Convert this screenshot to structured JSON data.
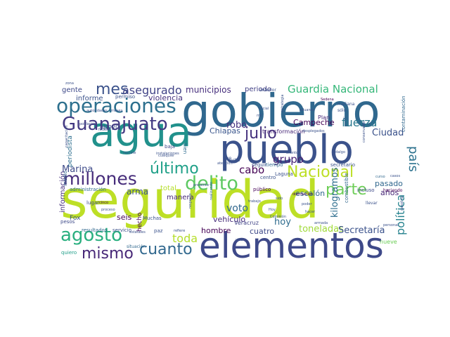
{
  "words": [
    {
      "text": "seguridad",
      "color": "#bddf26"
    },
    {
      "text": "gobierno",
      "color": "#30688e"
    },
    {
      "text": "pueblo",
      "color": "#3b528b"
    },
    {
      "text": "agua",
      "color": "#21918c"
    },
    {
      "text": "elementos",
      "color": "#3e4989"
    },
    {
      "text": "operaciones",
      "color": "#2d708e"
    },
    {
      "text": "Guanajuato",
      "color": "#443a83"
    },
    {
      "text": "millones",
      "color": "#472d7b"
    },
    {
      "text": "agosto",
      "color": "#29af7f"
    },
    {
      "text": "Nacional",
      "color": "#bddf26"
    },
    {
      "text": "delito",
      "color": "#5ec962"
    },
    {
      "text": "parte",
      "color": "#6ece58"
    },
    {
      "text": "último",
      "color": "#1fa088"
    },
    {
      "text": "mismo",
      "color": "#482878"
    },
    {
      "text": "cuanto",
      "color": "#31688e"
    },
    {
      "text": "julio",
      "color": "#46337e"
    },
    {
      "text": "país",
      "color": "#2c728e"
    },
    {
      "text": "Guardia Nacional",
      "color": "#35b779"
    },
    {
      "text": "mes",
      "color": "#3b528b"
    },
    {
      "text": "asegurado",
      "color": "#414487"
    },
    {
      "text": "fuerza",
      "color": "#2a788e"
    },
    {
      "text": "Marina",
      "color": "#3e4a89"
    },
    {
      "text": "cabo",
      "color": "#440154"
    },
    {
      "text": "grupo",
      "color": "#482475"
    },
    {
      "text": "política",
      "color": "#26828e"
    },
    {
      "text": "robo",
      "color": "#46307e"
    },
    {
      "text": "toda",
      "color": "#b5de2b"
    },
    {
      "text": "municipios",
      "color": "#472f7d"
    },
    {
      "text": "periodo",
      "color": "#424186"
    },
    {
      "text": "voto",
      "color": "#31688e"
    },
    {
      "text": "hoy",
      "color": "#2f6c8e"
    },
    {
      "text": "toneladas",
      "color": "#a0da39"
    },
    {
      "text": "Secretaría",
      "color": "#3b528b"
    },
    {
      "text": "kilogramos",
      "color": "#2e6e8e"
    },
    {
      "text": "pasado",
      "color": "#31688e"
    },
    {
      "text": "arma",
      "color": "#3b528b"
    },
    {
      "text": "hombre",
      "color": "#440154"
    },
    {
      "text": "cuatro",
      "color": "#3e4989"
    },
    {
      "text": "escalón",
      "color": "#31688e"
    },
    {
      "text": "Ciudad",
      "color": "#3b528b"
    },
    {
      "text": "años",
      "color": "#482878"
    },
    {
      "text": "vehículo",
      "color": "#472c7a"
    },
    {
      "text": "seis",
      "color": "#440154"
    },
    {
      "text": "total",
      "color": "#b5de2b"
    },
    {
      "text": "Chiapas",
      "color": "#39558c"
    },
    {
      "text": "Campeche",
      "color": "#440154"
    },
    {
      "text": "violencia",
      "color": "#46327e"
    },
    {
      "text": "gente",
      "color": "#3e4989"
    },
    {
      "text": "informe",
      "color": "#3b528b"
    },
    {
      "text": "información",
      "color": "#46307e"
    },
    {
      "text": "manera",
      "color": "#482878"
    },
    {
      "text": "Fox",
      "color": "#3b528b"
    },
    {
      "text": "Veracruz",
      "color": "#414487"
    },
    {
      "text": "Plan",
      "color": "#482878"
    },
    {
      "text": "apoyo",
      "color": "#3e4989"
    },
    {
      "text": "periodista",
      "color": "#2e6e8e"
    },
    {
      "text": "permiso",
      "color": "#3b528b"
    },
    {
      "text": "hecho",
      "color": "#440154"
    },
    {
      "text": "Muchas",
      "color": "#3b528b"
    },
    {
      "text": "resultados",
      "color": "#31688e"
    },
    {
      "text": "servicio",
      "color": "#3b528b"
    },
    {
      "text": "quiero",
      "color": "#1f9e89"
    },
    {
      "text": "paz",
      "color": "#3b528b"
    },
    {
      "text": "nueve",
      "color": "#6ece58"
    },
    {
      "text": "transformación",
      "color": "#482878"
    },
    {
      "text": "seguir",
      "color": "#3b528b"
    },
    {
      "text": "tiempo",
      "color": "#31688e"
    },
    {
      "text": "secretario",
      "color": "#3b528b"
    },
    {
      "text": "combustible",
      "color": "#31688e"
    },
    {
      "text": "incluso",
      "color": "#3e4989"
    },
    {
      "text": "haciendo",
      "color": "#440154"
    },
    {
      "text": "llevar",
      "color": "#3b528b"
    },
    {
      "text": "público",
      "color": "#440154"
    },
    {
      "text": "centro",
      "color": "#3b528b"
    },
    {
      "text": "Laguna",
      "color": "#3b528b"
    },
    {
      "text": "medio",
      "color": "#31688e"
    },
    {
      "text": "pesos",
      "color": "#3e4989"
    },
    {
      "text": "administración",
      "color": "#2f6c8e"
    },
    {
      "text": "lugar",
      "color": "#3e4989"
    },
    {
      "text": "cinco",
      "color": "#440154"
    },
    {
      "text": "bien",
      "color": "#2f6c8e"
    },
    {
      "text": "baja",
      "color": "#3e4989"
    },
    {
      "text": "ocho",
      "color": "#3b528b"
    },
    {
      "text": "anterior",
      "color": "#3b528b"
    },
    {
      "text": "mañana",
      "color": "#3b528b"
    },
    {
      "text": "sólo",
      "color": "#3b528b"
    },
    {
      "text": "ir",
      "color": "#3b528b"
    },
    {
      "text": "contaminación",
      "color": "#31688e"
    },
    {
      "text": "Sedena",
      "color": "#440154"
    },
    {
      "text": "aduanas",
      "color": "#3b528b"
    },
    {
      "text": "desplegados",
      "color": "#3b528b"
    },
    {
      "text": "Hidalgo",
      "color": "#3b528b"
    },
    {
      "text": "curso",
      "color": "#31688e"
    },
    {
      "text": "población",
      "color": "#3e4989"
    },
    {
      "text": "rescate",
      "color": "#3b528b"
    },
    {
      "text": "instalaciones",
      "color": "#3b528b"
    },
    {
      "text": "atención",
      "color": "#3b528b"
    },
    {
      "text": "vida",
      "color": "#3b528b"
    },
    {
      "text": "refiere",
      "color": "#3b528b"
    },
    {
      "text": "estatales",
      "color": "#3b528b"
    },
    {
      "text": "situación",
      "color": "#31688e"
    },
    {
      "text": "distribución",
      "color": "#440154"
    },
    {
      "text": "poder",
      "color": "#3b528b"
    },
    {
      "text": "Comisión",
      "color": "#3b528b"
    },
    {
      "text": "realizando",
      "color": "#31688e"
    },
    {
      "text": "respecto",
      "color": "#3b528b"
    },
    {
      "text": "trabajo",
      "color": "#3b528b"
    },
    {
      "text": "sido",
      "color": "#3b528b"
    },
    {
      "text": "social",
      "color": "#3b528b"
    },
    {
      "text": "autoridades",
      "color": "#3b528b"
    },
    {
      "text": "meses",
      "color": "#3b528b"
    },
    {
      "text": "estrategia",
      "color": "#3b528b"
    },
    {
      "text": "federal",
      "color": "#3b528b"
    },
    {
      "text": "conservador",
      "color": "#3b528b"
    },
    {
      "text": "personal",
      "color": "#3b528b"
    },
    {
      "text": "gasolina",
      "color": "#3b528b"
    },
    {
      "text": "zona",
      "color": "#3b528b"
    },
    {
      "text": "capacitación",
      "color": "#3b528b"
    },
    {
      "text": "cualquier",
      "color": "#3b528b"
    },
    {
      "text": "asunto",
      "color": "#3b528b"
    },
    {
      "text": "hacer",
      "color": "#3b528b"
    },
    {
      "text": "armada",
      "color": "#3b528b"
    },
    {
      "text": "mil",
      "color": "#3b528b"
    },
    {
      "text": "ve",
      "color": "#3b528b"
    },
    {
      "text": "presente",
      "color": "#3b528b"
    },
    {
      "text": "proceso",
      "color": "#3b528b"
    },
    {
      "text": "casos",
      "color": "#3b528b"
    },
    {
      "text": "Hoy",
      "color": "#3b528b"
    }
  ]
}
